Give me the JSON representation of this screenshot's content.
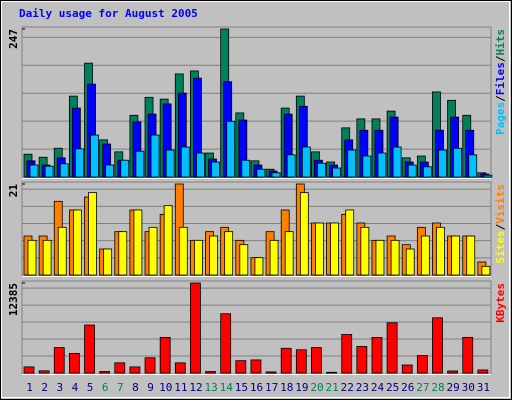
{
  "title": "Daily usage for August 2005",
  "chart_data": [
    {
      "type": "bar",
      "ylim": [
        0,
        247
      ],
      "yticks": [
        247
      ],
      "legend_separator": "/",
      "series": [
        {
          "name": "Hits",
          "color": "#00805c",
          "values": [
            38,
            33,
            48,
            135,
            190,
            62,
            42,
            103,
            133,
            130,
            172,
            177,
            40,
            247,
            107,
            27,
            13,
            115,
            135,
            42,
            25,
            82,
            97,
            97,
            110,
            32,
            35,
            142,
            128,
            103,
            7
          ]
        },
        {
          "name": "Files",
          "color": "#0000ff",
          "values": [
            27,
            20,
            32,
            115,
            155,
            55,
            28,
            92,
            105,
            122,
            140,
            165,
            30,
            159,
            95,
            20,
            10,
            105,
            118,
            28,
            20,
            62,
            78,
            78,
            100,
            25,
            25,
            78,
            100,
            78,
            5
          ]
        },
        {
          "name": "Pages",
          "color": "#00c0ff",
          "values": [
            20,
            18,
            22,
            47,
            70,
            20,
            28,
            43,
            70,
            45,
            50,
            40,
            25,
            93,
            28,
            13,
            7,
            37,
            50,
            23,
            15,
            45,
            35,
            40,
            50,
            20,
            17,
            45,
            48,
            37,
            3
          ]
        }
      ]
    },
    {
      "type": "bar",
      "ylim": [
        0,
        21
      ],
      "yticks": [
        21
      ],
      "legend_separator": "/",
      "series": [
        {
          "name": "Visits",
          "color": "#ff8000",
          "values": [
            9,
            9,
            17,
            15,
            18,
            6,
            10,
            15,
            10,
            14,
            21,
            8,
            10,
            11,
            8,
            4,
            10,
            15,
            21,
            12,
            12,
            14,
            12,
            8,
            9,
            7,
            11,
            12,
            9,
            9,
            3
          ]
        },
        {
          "name": "Sites",
          "color": "#ffff00",
          "values": [
            8,
            8,
            11,
            15,
            19,
            6,
            10,
            15,
            11,
            16,
            11,
            8,
            9,
            10,
            7,
            4,
            8,
            10,
            19,
            12,
            12,
            15,
            11,
            8,
            8,
            6,
            9,
            11,
            9,
            9,
            2
          ]
        }
      ]
    },
    {
      "type": "bar",
      "ylim": [
        0,
        12385
      ],
      "yticks": [
        12385
      ],
      "categories": [
        "1",
        "2",
        "3",
        "4",
        "5",
        "6",
        "7",
        "8",
        "9",
        "10",
        "11",
        "12",
        "13",
        "14",
        "15",
        "16",
        "17",
        "18",
        "19",
        "20",
        "21",
        "22",
        "23",
        "24",
        "25",
        "26",
        "27",
        "28",
        "29",
        "30",
        "31"
      ],
      "label_colors": [
        "#000080",
        "#000080",
        "#000080",
        "#000080",
        "#000080",
        "#00805c",
        "#00805c",
        "#000080",
        "#000080",
        "#000080",
        "#000080",
        "#000080",
        "#00805c",
        "#00805c",
        "#000080",
        "#000080",
        "#000080",
        "#000080",
        "#000080",
        "#00805c",
        "#00805c",
        "#000080",
        "#000080",
        "#000080",
        "#000080",
        "#000080",
        "#00805c",
        "#00805c",
        "#000080",
        "#000080",
        "#000080"
      ],
      "series": [
        {
          "name": "KBytes",
          "color": "#ff0000",
          "values": [
            844,
            300,
            3500,
            2700,
            6600,
            200,
            1400,
            840,
            2100,
            4900,
            1400,
            12385,
            200,
            8160,
            1700,
            1800,
            150,
            3400,
            3200,
            3500,
            100,
            5300,
            3650,
            4900,
            6900,
            1100,
            2400,
            7600,
            280,
            4900,
            420
          ]
        }
      ]
    }
  ]
}
